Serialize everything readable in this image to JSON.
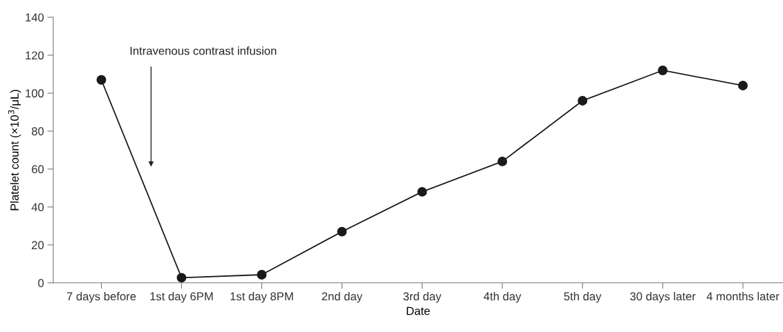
{
  "chart_data": {
    "type": "line",
    "xlabel": "Date",
    "ylabel": "Platelet count (×10$^{3}$/μL)",
    "categories": [
      "7 days before",
      "1st day 6PM",
      "1st day 8PM",
      "2nd day",
      "3rd day",
      "4th day",
      "5th day",
      "30 days later",
      "4 months later"
    ],
    "series": [
      {
        "color": "#1a1a1a",
        "values": [
          107,
          2.7,
          4.3,
          27,
          48,
          64,
          96,
          112,
          104
        ]
      }
    ],
    "ylim": [
      0,
      140
    ],
    "yticks": [
      0,
      20,
      40,
      60,
      80,
      100,
      120,
      140
    ],
    "annotations": [
      "Intravenous contrast infusion"
    ],
    "marker": "circle",
    "line_style": "solid",
    "grid": false,
    "legend": false
  }
}
